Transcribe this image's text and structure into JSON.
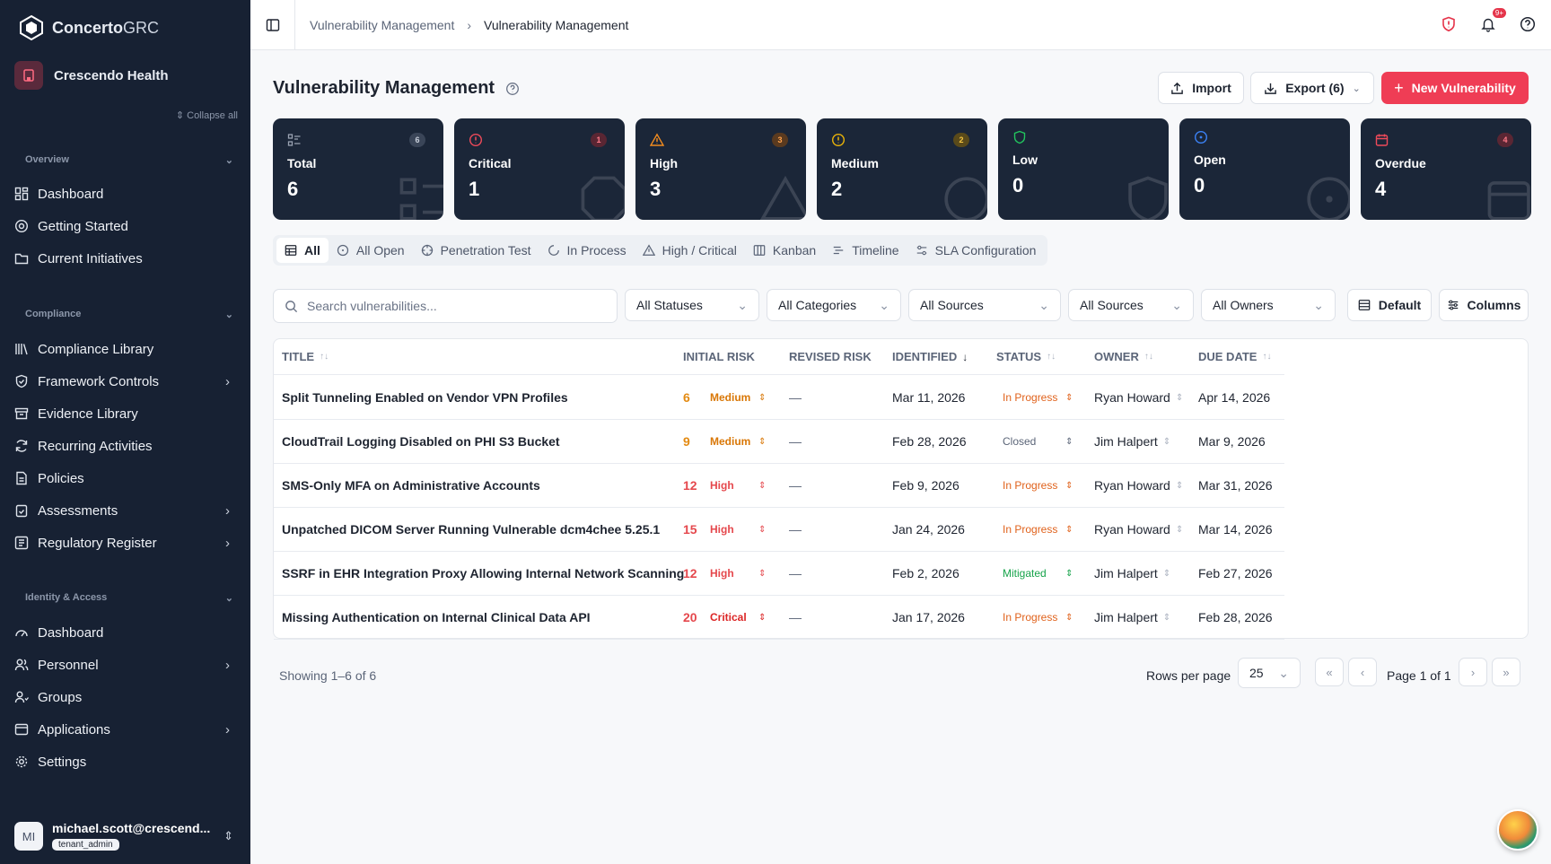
{
  "app": {
    "name_bold": "Concerto",
    "name_light": "GRC",
    "org": "Crescendo Health",
    "collapse_all": "Collapse all"
  },
  "sidebar": {
    "sections": [
      {
        "label": "Overview"
      },
      {
        "label": "Compliance"
      },
      {
        "label": "Identity & Access"
      }
    ],
    "items": [
      {
        "label": "Dashboard",
        "icon": "dashboard-icon"
      },
      {
        "label": "Getting Started",
        "icon": "help-circle-icon"
      },
      {
        "label": "Current Initiatives",
        "icon": "folder-icon"
      },
      {
        "label": "Compliance Library",
        "icon": "library-icon"
      },
      {
        "label": "Framework Controls",
        "icon": "shield-check-icon"
      },
      {
        "label": "Evidence Library",
        "icon": "archive-icon"
      },
      {
        "label": "Recurring Activities",
        "icon": "refresh-icon"
      },
      {
        "label": "Policies",
        "icon": "document-icon"
      },
      {
        "label": "Assessments",
        "icon": "clipboard-icon"
      },
      {
        "label": "Regulatory Register",
        "icon": "register-icon"
      },
      {
        "label": "Dashboard",
        "icon": "gauge-icon"
      },
      {
        "label": "Personnel",
        "icon": "users-icon"
      },
      {
        "label": "Groups",
        "icon": "user-group-icon"
      },
      {
        "label": "Applications",
        "icon": "app-window-icon"
      },
      {
        "label": "Settings",
        "icon": "gear-icon"
      }
    ],
    "user": {
      "initials": "MI",
      "email": "michael.scott@crescend...",
      "role": "tenant_admin"
    }
  },
  "topbar": {
    "breadcrumb_parent": "Vulnerability Management",
    "breadcrumb_current": "Vulnerability Management",
    "notif_badge": "9+"
  },
  "page": {
    "title": "Vulnerability Management",
    "import_label": "Import",
    "export_label": "Export (6)",
    "new_label": "New Vulnerability"
  },
  "cards": [
    {
      "label": "Total",
      "value": "6",
      "badge": "6",
      "color": "#9aa3b2"
    },
    {
      "label": "Critical",
      "value": "1",
      "badge": "1",
      "color": "#ef4a5a"
    },
    {
      "label": "High",
      "value": "3",
      "badge": "3",
      "color": "#f28b1f"
    },
    {
      "label": "Medium",
      "value": "2",
      "badge": "2",
      "color": "#eab308"
    },
    {
      "label": "Low",
      "value": "0",
      "badge": "",
      "color": "#22c55e"
    },
    {
      "label": "Open",
      "value": "0",
      "badge": "",
      "color": "#3b82f6"
    },
    {
      "label": "Overdue",
      "value": "4",
      "badge": "4",
      "color": "#ef4a5a"
    }
  ],
  "tabs": [
    "All",
    "All Open",
    "Penetration Test",
    "In Process",
    "High / Critical",
    "Kanban",
    "Timeline",
    "SLA Configuration"
  ],
  "filters": {
    "search_placeholder": "Search vulnerabilities...",
    "statuses": "All Statuses",
    "categories": "All Categories",
    "sources1": "All Sources",
    "sources2": "All Sources",
    "owners": "All Owners",
    "default_label": "Default",
    "columns_label": "Columns"
  },
  "table": {
    "headers": [
      "TITLE",
      "INITIAL RISK",
      "REVISED RISK",
      "IDENTIFIED",
      "STATUS",
      "OWNER",
      "DUE DATE"
    ],
    "rows": [
      {
        "title": "Split Tunneling Enabled on Vendor VPN Profiles",
        "risk": "6",
        "severity": "Medium",
        "revised": "—",
        "identified": "Mar 11, 2026",
        "status": "In Progress",
        "owner": "Ryan Howard",
        "due": "Apr 14, 2026"
      },
      {
        "title": "CloudTrail Logging Disabled on PHI S3 Bucket",
        "risk": "9",
        "severity": "Medium",
        "revised": "—",
        "identified": "Feb 28, 2026",
        "status": "Closed",
        "owner": "Jim Halpert",
        "due": "Mar 9, 2026"
      },
      {
        "title": "SMS-Only MFA on Administrative Accounts",
        "risk": "12",
        "severity": "High",
        "revised": "—",
        "identified": "Feb 9, 2026",
        "status": "In Progress",
        "owner": "Ryan Howard",
        "due": "Mar 31, 2026"
      },
      {
        "title": "Unpatched DICOM Server Running Vulnerable dcm4chee 5.25.1",
        "risk": "15",
        "severity": "High",
        "revised": "—",
        "identified": "Jan 24, 2026",
        "status": "In Progress",
        "owner": "Ryan Howard",
        "due": "Mar 14, 2026"
      },
      {
        "title": "SSRF in EHR Integration Proxy Allowing Internal Network Scanning",
        "risk": "12",
        "severity": "High",
        "revised": "—",
        "identified": "Feb 2, 2026",
        "status": "Mitigated",
        "owner": "Jim Halpert",
        "due": "Feb 27, 2026"
      },
      {
        "title": "Missing Authentication on Internal Clinical Data API",
        "risk": "20",
        "severity": "Critical",
        "revised": "—",
        "identified": "Jan 17, 2026",
        "status": "In Progress",
        "owner": "Jim Halpert",
        "due": "Feb 28, 2026"
      }
    ]
  },
  "pagination": {
    "showing": "Showing 1–6 of 6",
    "rows_per_page_label": "Rows per page",
    "rows_per_page": "25",
    "page_label": "Page 1 of 1"
  },
  "colors": {
    "medium": "#d97706",
    "high": "#e5484d",
    "critical": "#dc2626",
    "in_progress": "#e0621c",
    "closed": "#5b6578",
    "mitigated": "#16a34a",
    "risk_medium": "#e38a12",
    "risk_high": "#e5484d"
  }
}
